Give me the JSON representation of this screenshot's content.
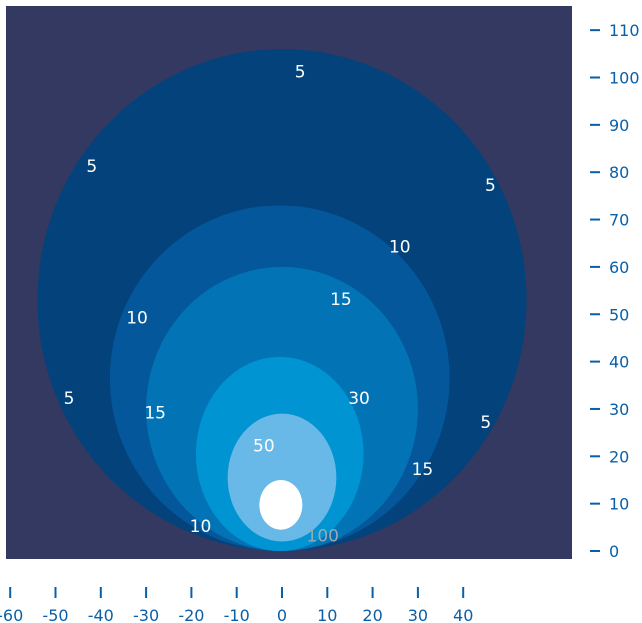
{
  "chart_data": {
    "type": "contour",
    "title": "",
    "xlabel": "",
    "ylabel": "",
    "x_ticks": [
      -60,
      -50,
      -40,
      -30,
      -20,
      -10,
      0,
      10,
      20,
      30,
      40
    ],
    "y_ticks": [
      0,
      10,
      20,
      30,
      40,
      50,
      60,
      70,
      80,
      90,
      100,
      110
    ],
    "xlim": [
      -60,
      50
    ],
    "ylim": [
      0,
      115
    ],
    "contours": [
      {
        "level": 5,
        "x_extent": [
          -54,
          54
        ],
        "y_extent": [
          0,
          106
        ],
        "color": "#03427b"
      },
      {
        "level": 10,
        "x_extent": [
          -38,
          37
        ],
        "y_extent": [
          0,
          73
        ],
        "color": "#03579a"
      },
      {
        "level": 15,
        "x_extent": [
          -30,
          30
        ],
        "y_extent": [
          0,
          60
        ],
        "color": "#0273b5"
      },
      {
        "level": 30,
        "x_extent": [
          -19,
          18
        ],
        "y_extent": [
          0,
          41
        ],
        "color": "#0194d3"
      },
      {
        "level": 50,
        "x_extent": [
          -12,
          12
        ],
        "y_extent": [
          2,
          29
        ],
        "color": "#68b8e8"
      },
      {
        "level": 100,
        "x_extent": [
          -5,
          4.5
        ],
        "y_extent": [
          4.5,
          15
        ],
        "color": "#ffffff"
      }
    ],
    "labels": [
      {
        "text": "5",
        "x": 4,
        "y": 100
      },
      {
        "text": "5",
        "x": -42,
        "y": 80
      },
      {
        "text": "5",
        "x": 46,
        "y": 76
      },
      {
        "text": "5",
        "x": -47,
        "y": 31
      },
      {
        "text": "5",
        "x": 45,
        "y": 26
      },
      {
        "text": "10",
        "x": 26,
        "y": 63
      },
      {
        "text": "10",
        "x": -32,
        "y": 48
      },
      {
        "text": "10",
        "x": -18,
        "y": 4
      },
      {
        "text": "15",
        "x": 13,
        "y": 52
      },
      {
        "text": "15",
        "x": -28,
        "y": 28
      },
      {
        "text": "15",
        "x": 31,
        "y": 16
      },
      {
        "text": "30",
        "x": 17,
        "y": 31
      },
      {
        "text": "50",
        "x": -4,
        "y": 21
      },
      {
        "text": "100",
        "x": 9,
        "y": 2
      }
    ],
    "background_color": "#343961",
    "axis_color": "#0a5fa8"
  }
}
